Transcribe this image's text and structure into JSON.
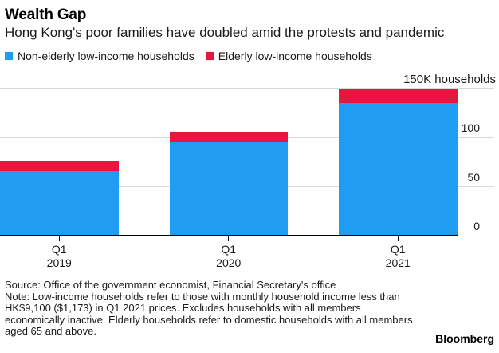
{
  "header": {
    "title": "Wealth Gap",
    "subtitle": "Hong Kong's poor families have doubled amid the protests and pandemic"
  },
  "chart_data": {
    "type": "bar",
    "stacked": true,
    "unit": "thousand households",
    "categories": [
      {
        "quarter": "Q1",
        "year": "2019"
      },
      {
        "quarter": "Q1",
        "year": "2020"
      },
      {
        "quarter": "Q1",
        "year": "2021"
      }
    ],
    "series": [
      {
        "name": "Non-elderly low-income households",
        "color": "#209cf2",
        "values": [
          66,
          95,
          135
        ]
      },
      {
        "name": "Elderly low-income households",
        "color": "#e6173e",
        "values": [
          10,
          11,
          14
        ]
      }
    ],
    "totals": [
      76,
      106,
      149
    ],
    "ylim": [
      0,
      150
    ],
    "yticks": [
      {
        "value": 0,
        "label": "0"
      },
      {
        "value": 50,
        "label": "50"
      },
      {
        "value": 100,
        "label": "100"
      },
      {
        "value": 150,
        "label": "150K households"
      }
    ],
    "grid": true,
    "legend_position": "top",
    "ytick_side": "right"
  },
  "footer": {
    "source": "Source: Office of the government economist, Financial Secretary's office",
    "note": "Note: Low-income households refer to those with monthly household income less than HK$9,100 ($1,173) in Q1 2021 prices. Excludes households with all members economically inactive. Elderly households refer to domestic households with all members aged 65 and above.",
    "brand": "Bloomberg"
  }
}
